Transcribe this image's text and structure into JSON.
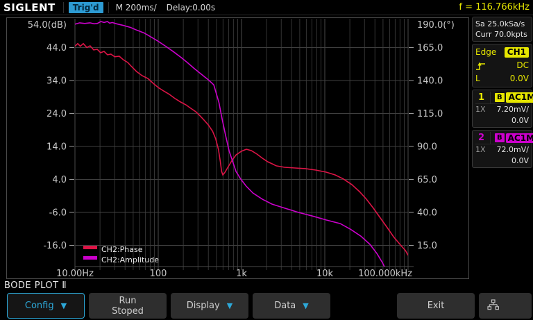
{
  "colors": {
    "accent_cyan": "#2da8d8",
    "trigger_badge_bg": "#2d9bd3",
    "yellow": "#e6e600",
    "ch1_color": "#e6e600",
    "ch2_color": "#cc00cc",
    "phase_curve": "#dc1446",
    "amplitude_curve": "#cc00cc"
  },
  "topbar": {
    "logo": "SIGLENT",
    "trigger_status": "Trig'd",
    "timebase": "M 200ms/",
    "delay": "Delay:0.00s",
    "frequency_readout": "f = 116.766kHz"
  },
  "sidebar": {
    "acquisition": {
      "sample_rate": "Sa 25.0kSa/s",
      "memory_depth": "Curr 70.0kpts"
    },
    "trigger": {
      "type_label": "Edge",
      "source_badge": "CH1",
      "slope_icon": "rising-edge-icon",
      "coupling": "DC",
      "level_label": "L",
      "level_value": "0.0V"
    },
    "channels": [
      {
        "number": "1",
        "bw_badge": "B",
        "coupling_badge": "AC1M",
        "probe": "1X",
        "scale": "7.20mV/",
        "offset": "0.0V",
        "color": "#e6e600"
      },
      {
        "number": "2",
        "bw_badge": "B",
        "coupling_badge": "AC1M",
        "probe": "1X",
        "scale": "72.0mV/",
        "offset": "0.0V",
        "color": "#cc00cc"
      }
    ]
  },
  "menu": {
    "title": "BODE PLOT Ⅱ",
    "arrow_glyph": "▼",
    "buttons": [
      {
        "label": "Config"
      },
      {
        "label": "Run",
        "sublabel": "Stoped"
      },
      {
        "label": "Display"
      },
      {
        "label": "Data"
      },
      {
        "label": "Exit"
      }
    ]
  },
  "chart_data": {
    "type": "line",
    "title": "BODE PLOT Ⅱ",
    "x_axis": {
      "scale": "log",
      "unit": "Hz",
      "min": 10,
      "max": 100000,
      "tick_labels": [
        "10.00Hz",
        "100",
        "1k",
        "10k",
        "100.000kHz"
      ]
    },
    "y_left": {
      "label": "dB",
      "ticks": [
        54,
        44,
        34,
        24,
        14,
        4,
        -6,
        -16
      ],
      "tick_labels": [
        "54.0(dB)",
        "44.0",
        "34.0",
        "24.0",
        "14.0",
        "4.0",
        "-6.0",
        "-16.0"
      ]
    },
    "y_right": {
      "label": "deg",
      "ticks": [
        190,
        165,
        140,
        115,
        90,
        65,
        40,
        15
      ],
      "tick_labels": [
        "190.0(°)",
        "165.0",
        "140.0",
        "115.0",
        "90.0",
        "65.0",
        "40.0",
        "15.0"
      ]
    },
    "legend": [
      {
        "label": "CH2:Phase",
        "color": "#dc1446"
      },
      {
        "label": "CH2:Amplitude",
        "color": "#cc00cc"
      }
    ],
    "series": [
      {
        "name": "CH2:Phase",
        "axis": "right",
        "color": "#dc1446",
        "points": [
          [
            10,
            166
          ],
          [
            10.8,
            168
          ],
          [
            11.6,
            166
          ],
          [
            12.6,
            168
          ],
          [
            13.9,
            165
          ],
          [
            15.2,
            166.3
          ],
          [
            16.8,
            163.2
          ],
          [
            18.5,
            163.7
          ],
          [
            20.3,
            161.1
          ],
          [
            22.4,
            162.1
          ],
          [
            24.6,
            159.5
          ],
          [
            27,
            160
          ],
          [
            30,
            158
          ],
          [
            34,
            158.4
          ],
          [
            38,
            155.8
          ],
          [
            43,
            153.7
          ],
          [
            48,
            150.5
          ],
          [
            55,
            146.8
          ],
          [
            64,
            143.7
          ],
          [
            75,
            141.6
          ],
          [
            87,
            137.9
          ],
          [
            100,
            134.7
          ],
          [
            116,
            132.1
          ],
          [
            136,
            129.5
          ],
          [
            159,
            126.3
          ],
          [
            186,
            123.7
          ],
          [
            215,
            121.6
          ],
          [
            247,
            118.9
          ],
          [
            283,
            116.3
          ],
          [
            318,
            113.2
          ],
          [
            355,
            110
          ],
          [
            400,
            106.3
          ],
          [
            449,
            101.6
          ],
          [
            490,
            95.8
          ],
          [
            528,
            87.9
          ],
          [
            557,
            78.4
          ],
          [
            577,
            71.1
          ],
          [
            597,
            68.4
          ],
          [
            626,
            70
          ],
          [
            687,
            74.2
          ],
          [
            770,
            79.5
          ],
          [
            862,
            83.7
          ],
          [
            994,
            86.3
          ],
          [
            1143,
            87.9
          ],
          [
            1317,
            86.8
          ],
          [
            1535,
            84.2
          ],
          [
            1778,
            81.1
          ],
          [
            2060,
            78.4
          ],
          [
            2430,
            76.3
          ],
          [
            2610,
            75.3
          ],
          [
            3280,
            74.2
          ],
          [
            4370,
            73.7
          ],
          [
            5840,
            73.2
          ],
          [
            7780,
            72.1
          ],
          [
            10400,
            70.5
          ],
          [
            13300,
            68.4
          ],
          [
            16800,
            65.3
          ],
          [
            21100,
            61.1
          ],
          [
            26100,
            55.8
          ],
          [
            31600,
            50
          ],
          [
            38300,
            43.2
          ],
          [
            46400,
            35.8
          ],
          [
            56200,
            28.4
          ],
          [
            66800,
            21.6
          ],
          [
            80900,
            15.3
          ],
          [
            93000,
            11.1
          ],
          [
            100000,
            7.4
          ]
        ]
      },
      {
        "name": "CH2:Amplitude",
        "axis": "left",
        "color": "#cc00cc",
        "points": [
          [
            10,
            51.1
          ],
          [
            11.4,
            51.5
          ],
          [
            13.1,
            51.3
          ],
          [
            15.2,
            51.5
          ],
          [
            17,
            51.2
          ],
          [
            18.5,
            51.3
          ],
          [
            20.5,
            51.9
          ],
          [
            22.4,
            51.6
          ],
          [
            24.5,
            51.9
          ],
          [
            26.1,
            51.4
          ],
          [
            28,
            51.6
          ],
          [
            31.6,
            51.2
          ],
          [
            38.3,
            50.7
          ],
          [
            46.4,
            50.1
          ],
          [
            56.2,
            49.2
          ],
          [
            68,
            48.4
          ],
          [
            82,
            47.2
          ],
          [
            100,
            45.9
          ],
          [
            126,
            44.2
          ],
          [
            153,
            42.7
          ],
          [
            186,
            41.1
          ],
          [
            225,
            39.4
          ],
          [
            272,
            37.6
          ],
          [
            330,
            35.9
          ],
          [
            400,
            34.2
          ],
          [
            464,
            32.7
          ],
          [
            494,
            30.4
          ],
          [
            536,
            27.3
          ],
          [
            582,
            22.6
          ],
          [
            643,
            17.4
          ],
          [
            710,
            12.6
          ],
          [
            784,
            9.4
          ],
          [
            860,
            6.4
          ],
          [
            980,
            4.1
          ],
          [
            1136,
            2.0
          ],
          [
            1370,
            -0.1
          ],
          [
            1780,
            -2.0
          ],
          [
            2330,
            -3.5
          ],
          [
            3280,
            -4.7
          ],
          [
            4830,
            -6.0
          ],
          [
            7080,
            -7.1
          ],
          [
            10400,
            -8.3
          ],
          [
            15300,
            -9.4
          ],
          [
            20300,
            -11.1
          ],
          [
            27100,
            -13.2
          ],
          [
            34900,
            -15.7
          ],
          [
            42100,
            -18.4
          ],
          [
            49200,
            -21.2
          ],
          [
            54000,
            -23.3
          ]
        ]
      }
    ]
  }
}
